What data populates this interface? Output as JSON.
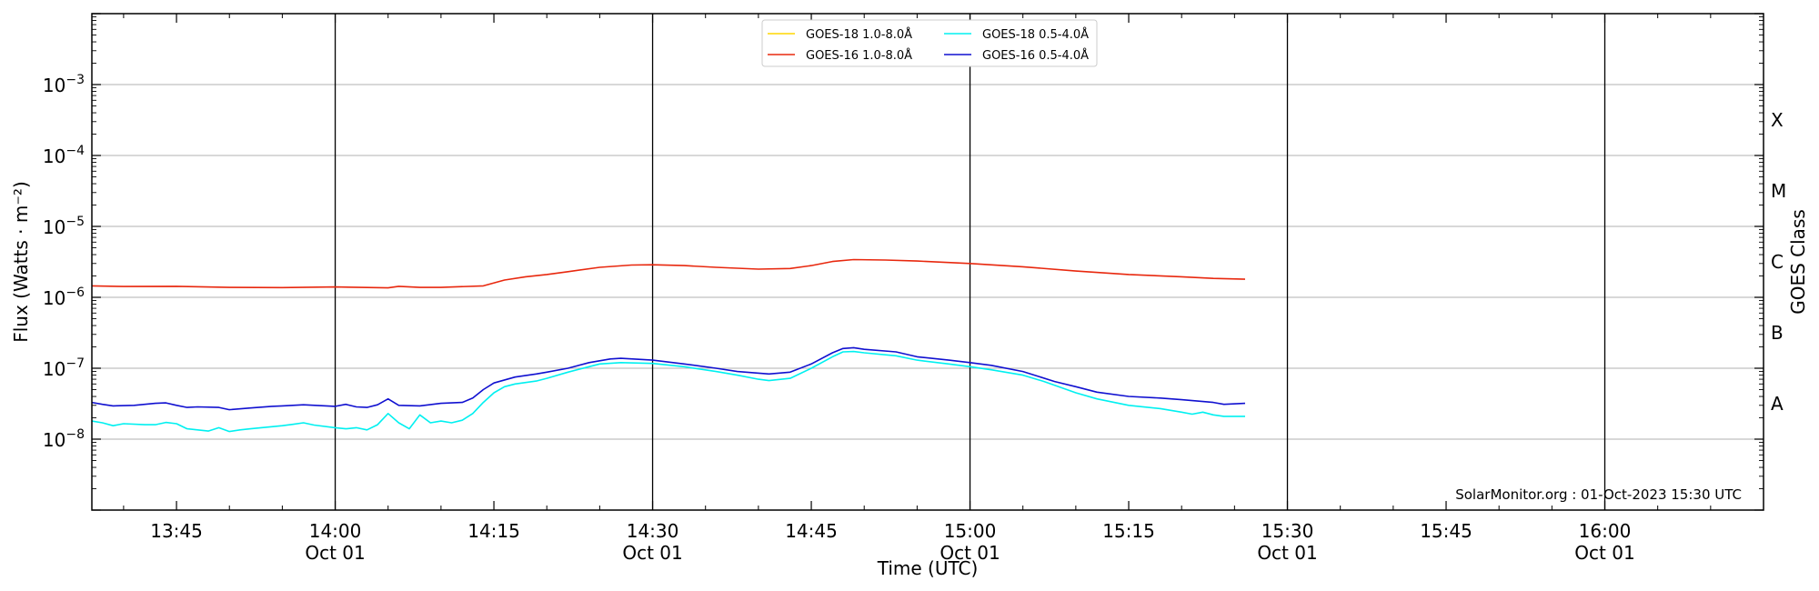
{
  "chart_data": {
    "type": "line",
    "y_scale": "log",
    "ylabel": "Flux (Watts · m⁻²)",
    "xlabel": "Time (UTC)",
    "right_axis_label": "GOES Class",
    "x_range": [
      "13:37",
      "16:15"
    ],
    "ylim": [
      1e-09,
      0.01
    ],
    "grid": "horizontal at each decade",
    "x_ticks": [
      {
        "time": "13:45",
        "label": "13:45",
        "sublabel": ""
      },
      {
        "time": "14:00",
        "label": "14:00",
        "sublabel": "Oct 01"
      },
      {
        "time": "14:15",
        "label": "14:15",
        "sublabel": ""
      },
      {
        "time": "14:30",
        "label": "14:30",
        "sublabel": "Oct 01"
      },
      {
        "time": "14:45",
        "label": "14:45",
        "sublabel": ""
      },
      {
        "time": "15:00",
        "label": "15:00",
        "sublabel": "Oct 01"
      },
      {
        "time": "15:15",
        "label": "15:15",
        "sublabel": ""
      },
      {
        "time": "15:30",
        "label": "15:30",
        "sublabel": "Oct 01"
      },
      {
        "time": "15:45",
        "label": "15:45",
        "sublabel": ""
      },
      {
        "time": "16:00",
        "label": "16:00",
        "sublabel": "Oct 01"
      }
    ],
    "vertical_lines": [
      "14:00",
      "14:30",
      "15:00",
      "15:30",
      "16:00"
    ],
    "y_ticks": [
      {
        "value": 1e-08,
        "base": "10",
        "exp": "−8"
      },
      {
        "value": 1e-07,
        "base": "10",
        "exp": "−7"
      },
      {
        "value": 1e-06,
        "base": "10",
        "exp": "−6"
      },
      {
        "value": 1e-05,
        "base": "10",
        "exp": "−5"
      },
      {
        "value": 0.0001,
        "base": "10",
        "exp": "−4"
      },
      {
        "value": 0.001,
        "base": "10",
        "exp": "−3"
      }
    ],
    "goes_classes": [
      {
        "label": "A",
        "value": 3.16e-08
      },
      {
        "label": "B",
        "value": 3.16e-07
      },
      {
        "label": "C",
        "value": 3.16e-06
      },
      {
        "label": "M",
        "value": 3.16e-05
      },
      {
        "label": "X",
        "value": 0.000316
      }
    ],
    "legend": {
      "placement": "top-center",
      "columns": [
        [
          "GOES-18 1.0-8.0Å",
          "GOES-16 1.0-8.0Å"
        ],
        [
          "GOES-18 0.5-4.0Å",
          "GOES-16 0.5-4.0Å"
        ]
      ]
    },
    "annotation": "SolarMonitor.org : 01-Oct-2023 15:30 UTC",
    "series": [
      {
        "name": "GOES-18 1.0-8.0Å",
        "color": "#ffd700",
        "points": []
      },
      {
        "name": "GOES-16 1.0-8.0Å",
        "color": "#e8280e",
        "points": [
          [
            "13:37",
            1.45e-06
          ],
          [
            "13:40",
            1.42e-06
          ],
          [
            "13:45",
            1.43e-06
          ],
          [
            "13:50",
            1.38e-06
          ],
          [
            "13:55",
            1.37e-06
          ],
          [
            "14:00",
            1.4e-06
          ],
          [
            "14:05",
            1.36e-06
          ],
          [
            "14:06",
            1.43e-06
          ],
          [
            "14:08",
            1.38e-06
          ],
          [
            "14:10",
            1.38e-06
          ],
          [
            "14:14",
            1.45e-06
          ],
          [
            "14:16",
            1.75e-06
          ],
          [
            "14:18",
            1.95e-06
          ],
          [
            "14:20",
            2.1e-06
          ],
          [
            "14:22",
            2.3e-06
          ],
          [
            "14:25",
            2.65e-06
          ],
          [
            "14:28",
            2.85e-06
          ],
          [
            "14:30",
            2.88e-06
          ],
          [
            "14:33",
            2.8e-06
          ],
          [
            "14:36",
            2.65e-06
          ],
          [
            "14:40",
            2.5e-06
          ],
          [
            "14:43",
            2.55e-06
          ],
          [
            "14:45",
            2.8e-06
          ],
          [
            "14:47",
            3.2e-06
          ],
          [
            "14:49",
            3.4e-06
          ],
          [
            "14:52",
            3.35e-06
          ],
          [
            "14:55",
            3.25e-06
          ],
          [
            "15:00",
            3e-06
          ],
          [
            "15:05",
            2.7e-06
          ],
          [
            "15:10",
            2.35e-06
          ],
          [
            "15:15",
            2.1e-06
          ],
          [
            "15:20",
            1.95e-06
          ],
          [
            "15:23",
            1.85e-06
          ],
          [
            "15:26",
            1.8e-06
          ]
        ]
      },
      {
        "name": "GOES-18 0.5-4.0Å",
        "color": "#00f0f0",
        "points": [
          [
            "13:37",
            1.8e-08
          ],
          [
            "13:38",
            1.7e-08
          ],
          [
            "13:39",
            1.55e-08
          ],
          [
            "13:40",
            1.65e-08
          ],
          [
            "13:42",
            1.6e-08
          ],
          [
            "13:43",
            1.6e-08
          ],
          [
            "13:44",
            1.72e-08
          ],
          [
            "13:45",
            1.65e-08
          ],
          [
            "13:46",
            1.4e-08
          ],
          [
            "13:47",
            1.35e-08
          ],
          [
            "13:48",
            1.3e-08
          ],
          [
            "13:49",
            1.45e-08
          ],
          [
            "13:50",
            1.28e-08
          ],
          [
            "13:51",
            1.35e-08
          ],
          [
            "13:52",
            1.4e-08
          ],
          [
            "13:53",
            1.45e-08
          ],
          [
            "13:54",
            1.5e-08
          ],
          [
            "13:55",
            1.55e-08
          ],
          [
            "13:56",
            1.62e-08
          ],
          [
            "13:57",
            1.7e-08
          ],
          [
            "13:58",
            1.58e-08
          ],
          [
            "14:00",
            1.45e-08
          ],
          [
            "14:01",
            1.4e-08
          ],
          [
            "14:02",
            1.45e-08
          ],
          [
            "14:03",
            1.35e-08
          ],
          [
            "14:04",
            1.6e-08
          ],
          [
            "14:05",
            2.3e-08
          ],
          [
            "14:06",
            1.7e-08
          ],
          [
            "14:07",
            1.4e-08
          ],
          [
            "14:08",
            2.2e-08
          ],
          [
            "14:09",
            1.7e-08
          ],
          [
            "14:10",
            1.8e-08
          ],
          [
            "14:11",
            1.7e-08
          ],
          [
            "14:12",
            1.85e-08
          ],
          [
            "14:13",
            2.3e-08
          ],
          [
            "14:14",
            3.3e-08
          ],
          [
            "14:15",
            4.5e-08
          ],
          [
            "14:16",
            5.5e-08
          ],
          [
            "14:17",
            6e-08
          ],
          [
            "14:19",
            6.6e-08
          ],
          [
            "14:20",
            7.2e-08
          ],
          [
            "14:22",
            8.8e-08
          ],
          [
            "14:24",
            1.05e-07
          ],
          [
            "14:25",
            1.15e-07
          ],
          [
            "14:27",
            1.2e-07
          ],
          [
            "14:30",
            1.17e-07
          ],
          [
            "14:33",
            1.05e-07
          ],
          [
            "14:36",
            9e-08
          ],
          [
            "14:38",
            8e-08
          ],
          [
            "14:40",
            7e-08
          ],
          [
            "14:41",
            6.7e-08
          ],
          [
            "14:43",
            7.2e-08
          ],
          [
            "14:45",
            1e-07
          ],
          [
            "14:47",
            1.45e-07
          ],
          [
            "14:48",
            1.7e-07
          ],
          [
            "14:49",
            1.72e-07
          ],
          [
            "14:50",
            1.65e-07
          ],
          [
            "14:53",
            1.5e-07
          ],
          [
            "14:55",
            1.3e-07
          ],
          [
            "14:58",
            1.15e-07
          ],
          [
            "15:00",
            1.05e-07
          ],
          [
            "15:02",
            9.5e-08
          ],
          [
            "15:05",
            8e-08
          ],
          [
            "15:07",
            6.5e-08
          ],
          [
            "15:10",
            4.5e-08
          ],
          [
            "15:12",
            3.7e-08
          ],
          [
            "15:15",
            3e-08
          ],
          [
            "15:18",
            2.7e-08
          ],
          [
            "15:20",
            2.4e-08
          ],
          [
            "15:21",
            2.25e-08
          ],
          [
            "15:22",
            2.4e-08
          ],
          [
            "15:23",
            2.2e-08
          ],
          [
            "15:24",
            2.1e-08
          ],
          [
            "15:26",
            2.1e-08
          ]
        ]
      },
      {
        "name": "GOES-16 0.5-4.0Å",
        "color": "#1010d0",
        "points": [
          [
            "13:37",
            3.3e-08
          ],
          [
            "13:38",
            3.1e-08
          ],
          [
            "13:39",
            2.95e-08
          ],
          [
            "13:41",
            3e-08
          ],
          [
            "13:43",
            3.2e-08
          ],
          [
            "13:44",
            3.25e-08
          ],
          [
            "13:45",
            3e-08
          ],
          [
            "13:46",
            2.8e-08
          ],
          [
            "13:47",
            2.85e-08
          ],
          [
            "13:49",
            2.8e-08
          ],
          [
            "13:50",
            2.6e-08
          ],
          [
            "13:52",
            2.75e-08
          ],
          [
            "13:54",
            2.9e-08
          ],
          [
            "13:55",
            2.95e-08
          ],
          [
            "13:57",
            3.05e-08
          ],
          [
            "14:00",
            2.9e-08
          ],
          [
            "14:01",
            3.1e-08
          ],
          [
            "14:02",
            2.85e-08
          ],
          [
            "14:03",
            2.8e-08
          ],
          [
            "14:04",
            3.05e-08
          ],
          [
            "14:05",
            3.7e-08
          ],
          [
            "14:06",
            3e-08
          ],
          [
            "14:08",
            2.95e-08
          ],
          [
            "14:10",
            3.2e-08
          ],
          [
            "14:12",
            3.3e-08
          ],
          [
            "14:13",
            3.8e-08
          ],
          [
            "14:14",
            5e-08
          ],
          [
            "14:15",
            6.2e-08
          ],
          [
            "14:17",
            7.5e-08
          ],
          [
            "14:19",
            8.3e-08
          ],
          [
            "14:20",
            8.8e-08
          ],
          [
            "14:22",
            1e-07
          ],
          [
            "14:24",
            1.2e-07
          ],
          [
            "14:26",
            1.35e-07
          ],
          [
            "14:27",
            1.38e-07
          ],
          [
            "14:30",
            1.3e-07
          ],
          [
            "14:33",
            1.15e-07
          ],
          [
            "14:36",
            1e-07
          ],
          [
            "14:38",
            9e-08
          ],
          [
            "14:41",
            8.3e-08
          ],
          [
            "14:43",
            8.8e-08
          ],
          [
            "14:45",
            1.15e-07
          ],
          [
            "14:47",
            1.65e-07
          ],
          [
            "14:48",
            1.9e-07
          ],
          [
            "14:49",
            1.95e-07
          ],
          [
            "14:50",
            1.85e-07
          ],
          [
            "14:53",
            1.7e-07
          ],
          [
            "14:55",
            1.45e-07
          ],
          [
            "14:58",
            1.3e-07
          ],
          [
            "15:00",
            1.2e-07
          ],
          [
            "15:02",
            1.1e-07
          ],
          [
            "15:05",
            9e-08
          ],
          [
            "15:08",
            6.5e-08
          ],
          [
            "15:10",
            5.5e-08
          ],
          [
            "15:12",
            4.6e-08
          ],
          [
            "15:15",
            4e-08
          ],
          [
            "15:18",
            3.8e-08
          ],
          [
            "15:20",
            3.6e-08
          ],
          [
            "15:23",
            3.3e-08
          ],
          [
            "15:24",
            3.1e-08
          ],
          [
            "15:26",
            3.2e-08
          ]
        ]
      }
    ]
  }
}
